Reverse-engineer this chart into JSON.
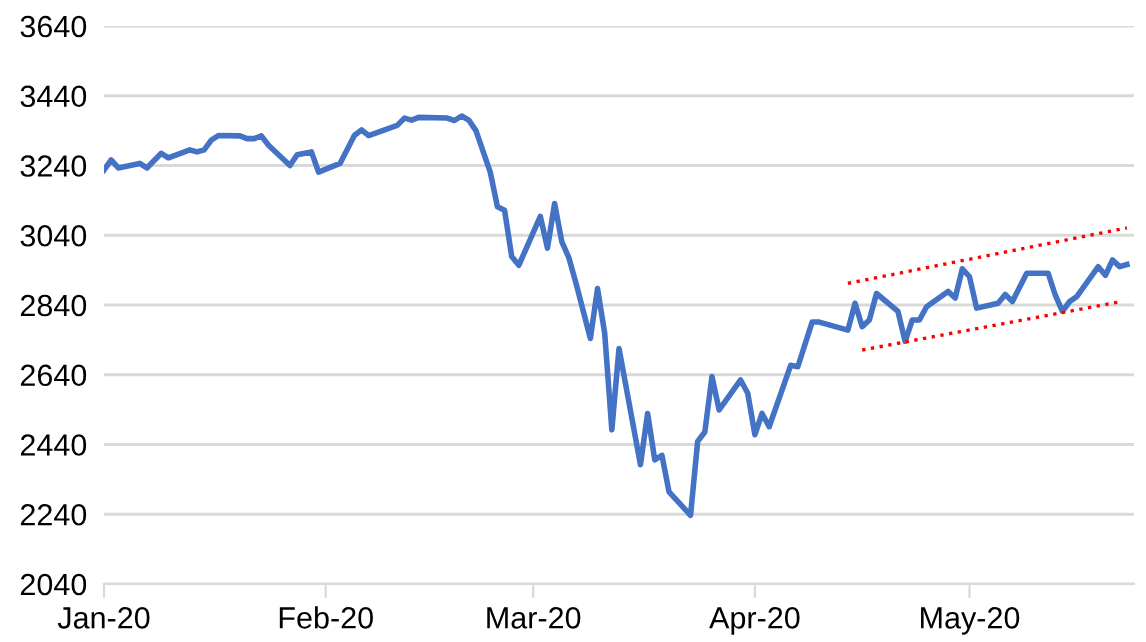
{
  "chart_data": {
    "type": "line",
    "x": [
      "2020-01-01",
      "2020-01-02",
      "2020-01-03",
      "2020-01-06",
      "2020-01-07",
      "2020-01-09",
      "2020-01-10",
      "2020-01-13",
      "2020-01-14",
      "2020-01-15",
      "2020-01-16",
      "2020-01-17",
      "2020-01-20",
      "2020-01-21",
      "2020-01-22",
      "2020-01-23",
      "2020-01-24",
      "2020-01-27",
      "2020-01-28",
      "2020-01-30",
      "2020-01-31",
      "2020-02-03",
      "2020-02-05",
      "2020-02-06",
      "2020-02-07",
      "2020-02-11",
      "2020-02-12",
      "2020-02-13",
      "2020-02-14",
      "2020-02-18",
      "2020-02-19",
      "2020-02-20",
      "2020-02-21",
      "2020-02-22",
      "2020-02-24",
      "2020-02-25",
      "2020-02-26",
      "2020-02-27",
      "2020-02-28",
      "2020-03-02",
      "2020-03-03",
      "2020-03-04",
      "2020-03-05",
      "2020-03-06",
      "2020-03-07",
      "2020-03-09",
      "2020-03-10",
      "2020-03-11",
      "2020-03-12",
      "2020-03-13",
      "2020-03-16",
      "2020-03-17",
      "2020-03-18",
      "2020-03-19",
      "2020-03-20",
      "2020-03-23",
      "2020-03-24",
      "2020-03-25",
      "2020-03-26",
      "2020-03-27",
      "2020-03-30",
      "2020-03-31",
      "2020-04-01",
      "2020-04-02",
      "2020-04-03",
      "2020-04-06",
      "2020-04-07",
      "2020-04-09",
      "2020-04-10",
      "2020-04-14",
      "2020-04-15",
      "2020-04-16",
      "2020-04-17",
      "2020-04-18",
      "2020-04-21",
      "2020-04-22",
      "2020-04-23",
      "2020-04-24",
      "2020-04-25",
      "2020-04-28",
      "2020-04-29",
      "2020-04-30",
      "2020-05-01",
      "2020-05-02",
      "2020-05-05",
      "2020-05-06",
      "2020-05-07",
      "2020-05-09",
      "2020-05-12",
      "2020-05-13",
      "2020-05-14",
      "2020-05-15",
      "2020-05-16",
      "2020-05-19",
      "2020-05-20",
      "2020-05-21",
      "2020-05-22",
      "2020-05-23"
    ],
    "series": [
      {
        "color": "#4472c4",
        "values": [
          3227,
          3256,
          3233,
          3246,
          3233,
          3275,
          3262,
          3285,
          3279,
          3285,
          3313,
          3326,
          3325,
          3317,
          3317,
          3325,
          3298,
          3240,
          3271,
          3279,
          3221,
          3246,
          3326,
          3342,
          3326,
          3355,
          3376,
          3370,
          3378,
          3376,
          3369,
          3382,
          3370,
          3340,
          3221,
          3122,
          3112,
          2979,
          2954,
          3094,
          3003,
          3131,
          3022,
          2975,
          2902,
          2744,
          2887,
          2759,
          2482,
          2715,
          2382,
          2529,
          2396,
          2409,
          2304,
          2237,
          2449,
          2476,
          2635,
          2539,
          2625,
          2587,
          2468,
          2529,
          2491,
          2667,
          2663,
          2791,
          2791,
          2768,
          2845,
          2778,
          2797,
          2873,
          2822,
          2736,
          2797,
          2797,
          2835,
          2879,
          2860,
          2944,
          2921,
          2831,
          2845,
          2870,
          2850,
          2931,
          2931,
          2868,
          2822,
          2850,
          2864,
          2950,
          2925,
          2969,
          2950,
          2956
        ]
      },
      {
        "type": "line",
        "color": "#ff0000",
        "line_style": "dotted",
        "x": [
          "2020-04-14",
          "2020-05-23"
        ],
        "values": [
          2902,
          3061
        ]
      },
      {
        "type": "line",
        "color": "#ff0000",
        "line_style": "dotted",
        "x": [
          "2020-04-16",
          "2020-05-22"
        ],
        "values": [
          2711,
          2849
        ]
      }
    ],
    "xlim": [
      "2020-01-01",
      "2020-05-24"
    ],
    "xticks": [
      {
        "value": "2020-01-01",
        "label": "Jan-20"
      },
      {
        "value": "2020-02-01",
        "label": "Feb-20"
      },
      {
        "value": "2020-03-01",
        "label": "Mar-20"
      },
      {
        "value": "2020-04-01",
        "label": "Apr-20"
      },
      {
        "value": "2020-05-01",
        "label": "May-20"
      }
    ],
    "ylim": [
      2040,
      3640
    ],
    "yticks": [
      2040,
      2240,
      2440,
      2640,
      2840,
      3040,
      3240,
      3440,
      3640
    ],
    "grid": "y",
    "line_style": "solid",
    "marker": "none"
  }
}
